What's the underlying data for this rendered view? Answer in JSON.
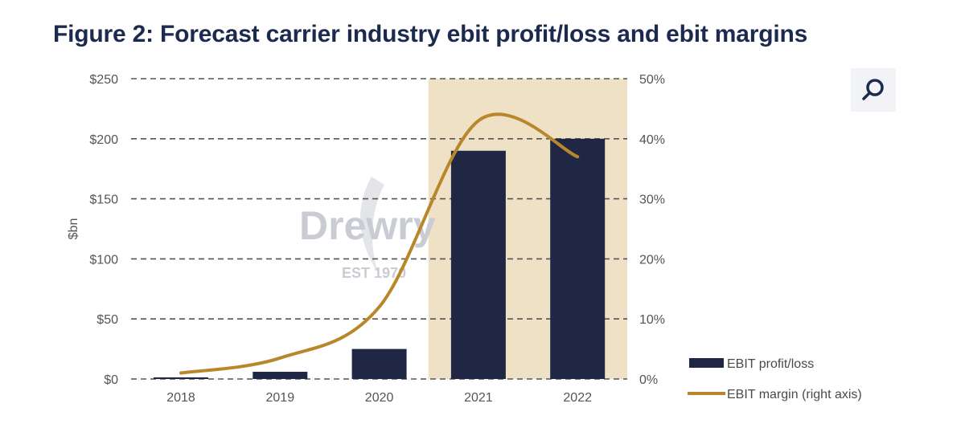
{
  "title": "Figure 2: Forecast carrier industry ebit profit/loss and ebit margins",
  "watermark": {
    "name": "Drewry",
    "tagline": "EST 1970"
  },
  "zoom_button": {
    "icon": "search-icon"
  },
  "colors": {
    "bar": "#1f2745",
    "line": "#b8872a",
    "highlight": "#efe1c6",
    "grid": "#555555",
    "title": "#1b2a4e"
  },
  "chart_data": {
    "type": "bar",
    "title": "Figure 2: Forecast carrier industry ebit profit/loss and ebit margins",
    "categories": [
      "2018",
      "2019",
      "2020",
      "2021",
      "2022"
    ],
    "series": [
      {
        "name": "EBIT profit/loss",
        "type": "bar",
        "axis": "left",
        "values": [
          1,
          6,
          25,
          190,
          200
        ]
      },
      {
        "name": "EBIT margin (right axis)",
        "type": "line",
        "axis": "right",
        "smooth": true,
        "values": [
          1,
          3.5,
          12,
          43,
          37
        ]
      }
    ],
    "ylabel": "$bn",
    "ylim": [
      0,
      250
    ],
    "yticks": [
      "$0",
      "$50",
      "$100",
      "$150",
      "$200",
      "$250"
    ],
    "y2lim": [
      0,
      50
    ],
    "y2ticks": [
      "0%",
      "10%",
      "20%",
      "30%",
      "40%",
      "50%"
    ],
    "highlight_categories": [
      "2021",
      "2022"
    ],
    "grid": true,
    "legend_position": "bottom-right"
  }
}
